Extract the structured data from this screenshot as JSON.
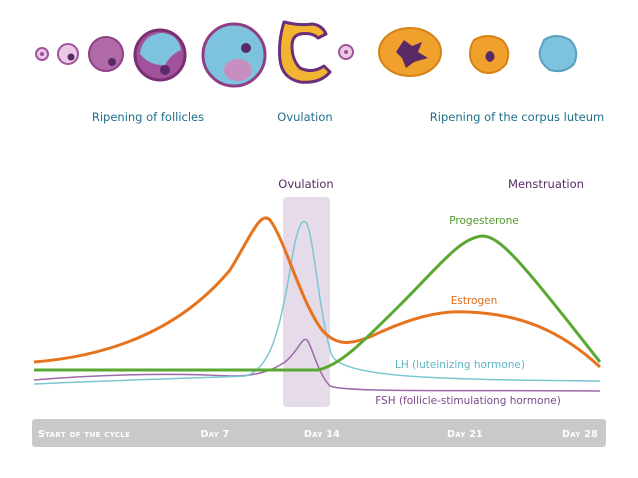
{
  "stages": {
    "ripening_follicles": "Ripening of follicles",
    "ovulation": "Ovulation",
    "ripening_corpus": "Ripening of the corpus luteum"
  },
  "chart": {
    "ovulation_header": "Ovulation",
    "menstruation_header": "Menstruation",
    "labels": {
      "progesterone": "Progesterone",
      "estrogen": "Estrogen",
      "lh": "LH (luteinizing hormone)",
      "fsh": "FSH (follicle-stimulationg hormone)"
    }
  },
  "axis": {
    "start": "Start of the cycle",
    "day7": "Day 7",
    "day14": "Day 14",
    "day21": "Day 21",
    "day28": "Day 28"
  },
  "colors": {
    "estrogen": "#e8731f",
    "progesterone": "#5aa832",
    "lh": "#7cc6d2",
    "fsh": "#9b6aa8",
    "ovulation_band": "#e6dbe8",
    "axis_bar": "#c9c9c9",
    "purple": "#a2529a",
    "teal": "#6bb7d6",
    "orange": "#f0a02c",
    "dark_purple": "#5a2a66"
  }
}
